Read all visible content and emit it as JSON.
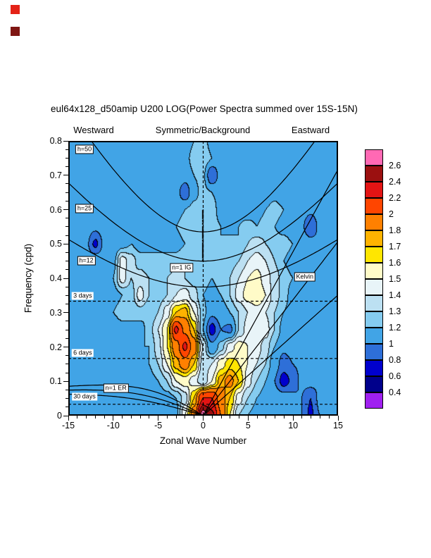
{
  "page": {
    "corner_marks": [
      "#E42217",
      "#7F1613"
    ]
  },
  "chart_data": {
    "type": "heatmap",
    "title": "eul64x128_d50amip U200 LOG(Power Spectra summed over 15S-15N)",
    "region_labels": {
      "west": "Westward",
      "center": "Symmetric/Background",
      "east": "Eastward"
    },
    "xlabel": "Zonal Wave Number",
    "ylabel": "Frequency (cpd)",
    "xlim": [
      -15,
      15
    ],
    "ylim": [
      0,
      0.8
    ],
    "x_ticks": [
      "-15",
      "-10",
      "-5",
      "0",
      "5",
      "10",
      "15"
    ],
    "y_ticks": [
      "0",
      "0.1",
      "0.2",
      "0.3",
      "0.4",
      "0.5",
      "0.6",
      "0.7",
      "0.8"
    ],
    "levels": [
      0.4,
      0.6,
      0.8,
      1,
      1.2,
      1.3,
      1.4,
      1.5,
      1.6,
      1.7,
      1.8,
      2,
      2.2,
      2.4,
      2.6
    ],
    "colors": [
      "#A020F0",
      "#00008B",
      "#0000CD",
      "#2E6FD8",
      "#41A4E6",
      "#85CCF0",
      "#BCE0F2",
      "#E8F4F8",
      "#FFFBC8",
      "#FFE600",
      "#FFB300",
      "#FF8000",
      "#FF4500",
      "#E31414",
      "#9B1010",
      "#FF69B4"
    ],
    "colorbar_labels": [
      "2.6",
      "2.4",
      "2.2",
      "2",
      "1.8",
      "1.7",
      "1.6",
      "1.5",
      "1.4",
      "1.3",
      "1.2",
      "1",
      "0.8",
      "0.6",
      "0.4"
    ],
    "grid": {
      "x_start": -15,
      "x_step": 1,
      "y_start": 0,
      "y_step": 0.05,
      "values": [
        [
          1.05,
          1.05,
          1.1,
          1.1,
          1.05,
          1.1,
          1.1,
          1.05,
          1.1,
          1.1,
          1.05,
          1.1,
          1.15,
          1.5,
          1.9,
          2.7,
          2.45,
          2.0,
          1.6,
          1.3,
          1.2,
          1.15,
          1.1,
          1.1,
          1.1,
          1.05,
          1.0,
          0.75,
          1.0,
          1.05,
          1.05
        ],
        [
          1.05,
          1.1,
          1.1,
          1.05,
          1.1,
          1.15,
          1.1,
          1.1,
          1.05,
          1.1,
          1.1,
          1.15,
          1.2,
          1.35,
          1.7,
          2.2,
          2.2,
          1.9,
          1.7,
          1.45,
          1.3,
          1.2,
          1.15,
          1.1,
          1.1,
          1.05,
          1.0,
          0.8,
          1.05,
          1.05,
          1.0
        ],
        [
          1.0,
          1.05,
          1.1,
          1.15,
          1.2,
          1.15,
          1.1,
          1.1,
          1.1,
          1.15,
          1.2,
          1.3,
          1.5,
          1.55,
          1.45,
          1.3,
          1.5,
          1.75,
          1.85,
          1.7,
          1.45,
          1.3,
          1.2,
          1.0,
          0.7,
          0.85,
          1.05,
          1.1,
          1.05,
          1.0,
          1.0
        ],
        [
          1.0,
          1.0,
          1.05,
          1.1,
          1.15,
          1.1,
          1.15,
          1.1,
          1.15,
          1.2,
          1.3,
          1.5,
          1.75,
          1.9,
          1.7,
          1.35,
          1.4,
          1.55,
          1.65,
          1.6,
          1.5,
          1.4,
          1.3,
          1.1,
          0.9,
          1.0,
          1.05,
          1.1,
          1.1,
          1.05,
          1.0
        ],
        [
          1.05,
          1.0,
          1.05,
          1.1,
          1.1,
          1.15,
          1.1,
          1.15,
          1.2,
          1.2,
          1.35,
          1.6,
          1.9,
          2.25,
          1.9,
          1.4,
          1.05,
          1.25,
          1.45,
          1.55,
          1.5,
          1.45,
          1.35,
          1.2,
          1.05,
          1.1,
          1.05,
          1.0,
          1.1,
          1.05,
          1.0
        ],
        [
          1.0,
          1.05,
          1.1,
          1.05,
          1.1,
          1.1,
          1.15,
          1.2,
          1.15,
          1.25,
          1.4,
          1.6,
          2.25,
          1.95,
          1.7,
          1.2,
          0.7,
          1.0,
          0.95,
          1.3,
          1.45,
          1.5,
          1.45,
          1.3,
          1.15,
          1.1,
          1.05,
          1.1,
          1.05,
          1.1,
          1.05
        ],
        [
          1.05,
          1.1,
          1.05,
          1.1,
          1.15,
          1.2,
          1.25,
          1.2,
          1.25,
          1.2,
          1.3,
          1.45,
          1.7,
          1.75,
          1.5,
          1.25,
          1.05,
          1.1,
          1.2,
          1.3,
          1.4,
          1.45,
          1.4,
          1.3,
          1.2,
          1.15,
          1.1,
          1.05,
          1.0,
          1.05,
          1.1
        ],
        [
          1.1,
          1.05,
          1.1,
          1.15,
          1.2,
          1.15,
          1.2,
          1.25,
          1.45,
          1.3,
          1.25,
          1.3,
          1.4,
          1.45,
          1.35,
          1.2,
          1.15,
          1.2,
          1.3,
          1.45,
          1.55,
          1.6,
          1.5,
          1.35,
          1.25,
          1.15,
          1.1,
          1.05,
          1.05,
          1.1,
          1.05
        ],
        [
          1.05,
          1.1,
          1.15,
          1.1,
          1.15,
          1.2,
          1.45,
          1.3,
          1.35,
          1.3,
          1.25,
          1.3,
          1.35,
          1.3,
          1.25,
          1.25,
          1.2,
          1.25,
          1.3,
          1.4,
          1.5,
          1.55,
          1.45,
          1.35,
          1.25,
          1.2,
          1.1,
          1.1,
          1.05,
          1.0,
          1.05
        ],
        [
          1.0,
          1.05,
          1.1,
          1.15,
          1.1,
          1.15,
          1.45,
          1.35,
          1.25,
          1.2,
          1.25,
          1.2,
          1.25,
          1.3,
          1.25,
          1.3,
          1.25,
          1.2,
          1.25,
          1.3,
          1.4,
          1.45,
          1.4,
          1.3,
          1.2,
          1.15,
          1.1,
          1.05,
          1.1,
          1.05,
          1.0
        ],
        [
          1.05,
          1.1,
          1.05,
          0.75,
          1.05,
          1.1,
          1.15,
          1.2,
          1.15,
          1.2,
          1.15,
          1.2,
          1.15,
          1.2,
          1.25,
          1.3,
          1.25,
          1.2,
          1.25,
          1.2,
          1.3,
          1.35,
          1.3,
          1.25,
          1.25,
          1.2,
          1.15,
          1.1,
          1.05,
          1.1,
          1.05
        ],
        [
          1.0,
          1.05,
          1.1,
          1.05,
          1.1,
          1.05,
          1.1,
          1.15,
          1.2,
          1.15,
          1.1,
          1.15,
          1.2,
          1.25,
          1.2,
          1.3,
          1.25,
          1.2,
          1.15,
          1.2,
          1.25,
          1.2,
          1.25,
          1.2,
          1.15,
          1.1,
          1.05,
          0.8,
          1.05,
          1.0,
          1.05
        ],
        [
          1.05,
          1.0,
          1.05,
          1.1,
          1.05,
          1.1,
          1.05,
          1.1,
          1.15,
          1.1,
          1.15,
          1.1,
          1.15,
          1.2,
          1.25,
          1.3,
          1.25,
          1.15,
          1.2,
          1.15,
          1.1,
          1.15,
          1.2,
          1.25,
          1.2,
          1.15,
          1.1,
          1.05,
          1.1,
          1.05,
          1.0
        ],
        [
          1.0,
          1.05,
          1.1,
          1.05,
          1.1,
          1.15,
          1.1,
          1.05,
          1.1,
          1.15,
          1.1,
          1.15,
          1.1,
          0.85,
          1.15,
          1.25,
          1.2,
          1.15,
          1.1,
          1.15,
          1.2,
          1.15,
          1.1,
          1.15,
          1.1,
          1.05,
          1.1,
          1.05,
          1.0,
          1.05,
          1.1
        ],
        [
          1.05,
          1.1,
          1.05,
          1.1,
          1.05,
          1.1,
          1.15,
          1.1,
          1.05,
          1.1,
          1.15,
          1.1,
          1.15,
          1.1,
          1.2,
          1.25,
          0.8,
          1.1,
          1.15,
          1.1,
          1.15,
          1.2,
          1.15,
          1.1,
          1.05,
          1.1,
          1.05,
          1.1,
          1.05,
          1.0,
          1.05
        ],
        [
          1.0,
          1.05,
          1.1,
          1.05,
          1.1,
          1.05,
          1.1,
          1.15,
          1.1,
          1.15,
          1.1,
          1.05,
          1.1,
          1.15,
          1.25,
          1.3,
          1.2,
          1.1,
          1.05,
          1.1,
          1.15,
          1.1,
          1.05,
          1.1,
          1.15,
          1.1,
          1.05,
          1.0,
          1.05,
          1.1,
          1.05
        ],
        [
          1.05,
          1.0,
          1.05,
          1.1,
          1.05,
          1.1,
          1.05,
          1.1,
          1.15,
          1.1,
          1.05,
          1.1,
          1.15,
          1.1,
          1.2,
          1.25,
          1.15,
          1.05,
          1.1,
          1.05,
          1.1,
          1.05,
          1.1,
          1.15,
          1.1,
          1.05,
          1.1,
          1.05,
          1.0,
          1.05,
          1.1
        ]
      ]
    },
    "dispersion": {
      "equivalent_depths": [
        12,
        25,
        50
      ],
      "beta": 2.28e-11,
      "earth_radius_m": 6371000,
      "gravity": 9.81
    },
    "reference_periods_days": [
      3,
      6,
      30
    ],
    "labels": [
      {
        "text": "h=50",
        "s": -13.2,
        "f": 0.775,
        "boxed": true
      },
      {
        "text": "h=25",
        "s": -13.2,
        "f": 0.603,
        "boxed": true
      },
      {
        "text": "h=12",
        "s": -13.0,
        "f": 0.452,
        "boxed": true
      },
      {
        "text": "n=1 IG",
        "s": -2.4,
        "f": 0.43,
        "boxed": true
      },
      {
        "text": "Kelvin",
        "s": 11.3,
        "f": 0.405,
        "boxed": true
      },
      {
        "text": "n=1 ER",
        "s": -9.7,
        "f": 0.08,
        "boxed": true
      },
      {
        "text": "3 days",
        "s": -13.4,
        "f": 0.349,
        "boxed": false
      },
      {
        "text": "6 days",
        "s": -13.4,
        "f": 0.183,
        "boxed": false
      },
      {
        "text": "30 days",
        "s": -13.2,
        "f": 0.055,
        "boxed": false
      }
    ]
  }
}
